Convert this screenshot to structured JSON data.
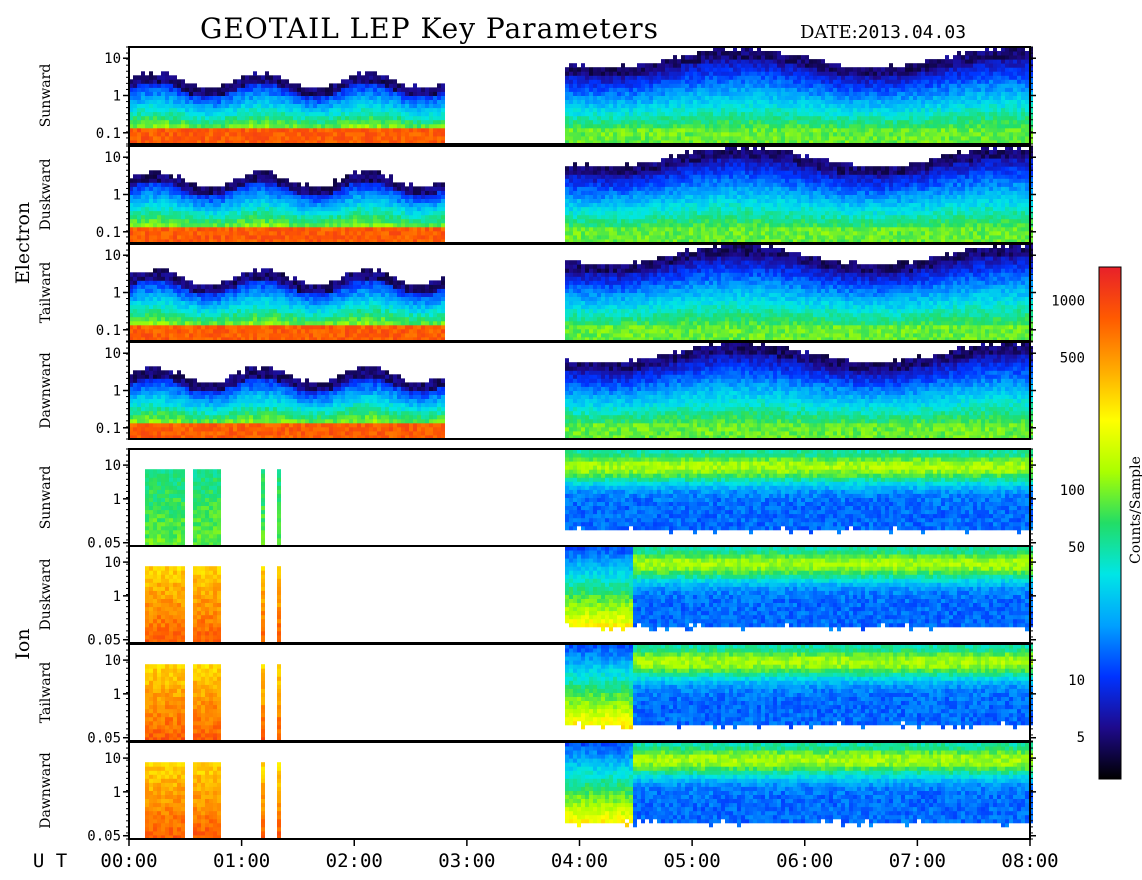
{
  "header": {
    "title": "GEOTAIL LEP Key Parameters",
    "date_label": "DATE:",
    "date_value": "2013.04.03"
  },
  "groups": [
    "Electron",
    "Ion"
  ],
  "ut_label": "U T",
  "colorbar": {
    "label": "Counts/Sample",
    "scale": "log",
    "range": [
      3,
      1500
    ],
    "ticks": [
      1000,
      500,
      100,
      50,
      10,
      5
    ],
    "colormap": [
      "#000000",
      "#1e0a8c",
      "#0033ff",
      "#00a0ff",
      "#00e6e6",
      "#22dd66",
      "#aaff00",
      "#ffff00",
      "#ffaa00",
      "#ff5a00",
      "#e8202a"
    ]
  },
  "chart_data": {
    "type": "heatmap",
    "x_axis": {
      "label": "U T",
      "range": [
        "00:00",
        "08:00"
      ],
      "ticks": [
        "00:00",
        "01:00",
        "02:00",
        "03:00",
        "04:00",
        "05:00",
        "06:00",
        "07:00",
        "08:00"
      ]
    },
    "data_gap": [
      "02:48",
      "03:53"
    ],
    "panels": [
      {
        "group": "Electron",
        "label": "Sunward",
        "yscale": "log",
        "yticks": [
          "10",
          "1",
          "0.1"
        ]
      },
      {
        "group": "Electron",
        "label": "Duskward",
        "yscale": "log",
        "yticks": [
          "10",
          "1",
          "0.1"
        ]
      },
      {
        "group": "Electron",
        "label": "Tailward",
        "yscale": "log",
        "yticks": [
          "10",
          "1",
          "0.1"
        ]
      },
      {
        "group": "Electron",
        "label": "Dawnward",
        "yscale": "log",
        "yticks": [
          "10",
          "1",
          "0.1"
        ]
      },
      {
        "group": "Ion",
        "label": "Sunward",
        "yscale": "log",
        "yticks": [
          "10",
          "1",
          "0.05"
        ]
      },
      {
        "group": "Ion",
        "label": "Duskward",
        "yscale": "log",
        "yticks": [
          "10",
          "1",
          "0.05"
        ]
      },
      {
        "group": "Ion",
        "label": "Tailward",
        "yscale": "log",
        "yticks": [
          "10",
          "1",
          "0.05"
        ]
      },
      {
        "group": "Ion",
        "label": "Dawnward",
        "yscale": "log",
        "yticks": [
          "10",
          "1",
          "0.05"
        ]
      }
    ]
  }
}
